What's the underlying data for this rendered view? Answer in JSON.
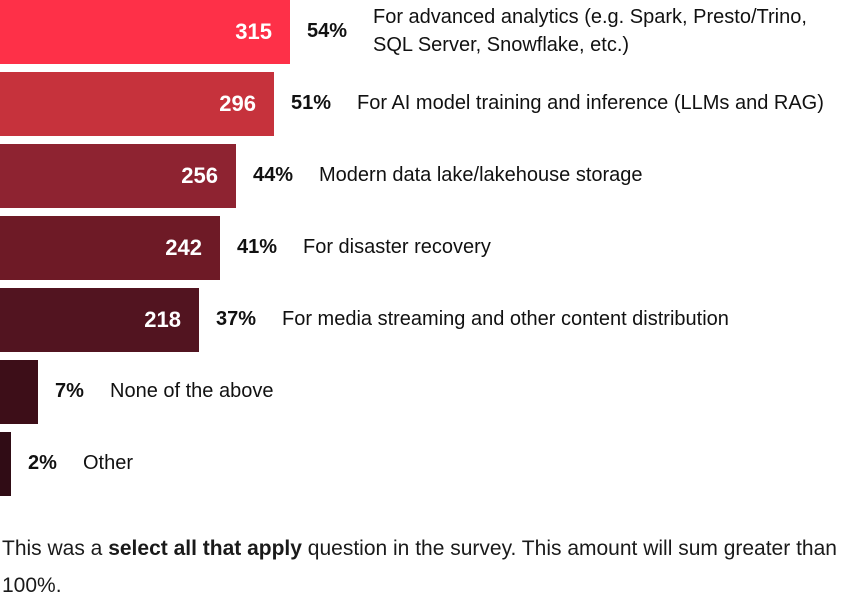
{
  "chart_data": {
    "type": "bar",
    "orientation": "horizontal",
    "categories": [
      "For advanced analytics (e.g. Spark, Presto/Trino, SQL Server, Snowflake, etc.)",
      "For AI model training and inference (LLMs and RAG)",
      "Modern data lake/lakehouse storage",
      "For disaster recovery",
      "For media streaming and other content distribution",
      "None of the above",
      "Other"
    ],
    "counts": [
      "315",
      "296",
      "256",
      "242",
      "218",
      "",
      ""
    ],
    "percentages": [
      "54%",
      "51%",
      "44%",
      "41%",
      "37%",
      "7%",
      "2%"
    ],
    "values": [
      54,
      51,
      44,
      41,
      37,
      7,
      2
    ],
    "colors": [
      "#fe3048",
      "#c6323c",
      "#8e2331",
      "#6e1a26",
      "#521420",
      "#3d0e18",
      "#300c15"
    ]
  },
  "note": {
    "before": "This was a ",
    "bold": "select all that apply",
    "after": " question in the survey. This amount will sum greater than 100%."
  }
}
